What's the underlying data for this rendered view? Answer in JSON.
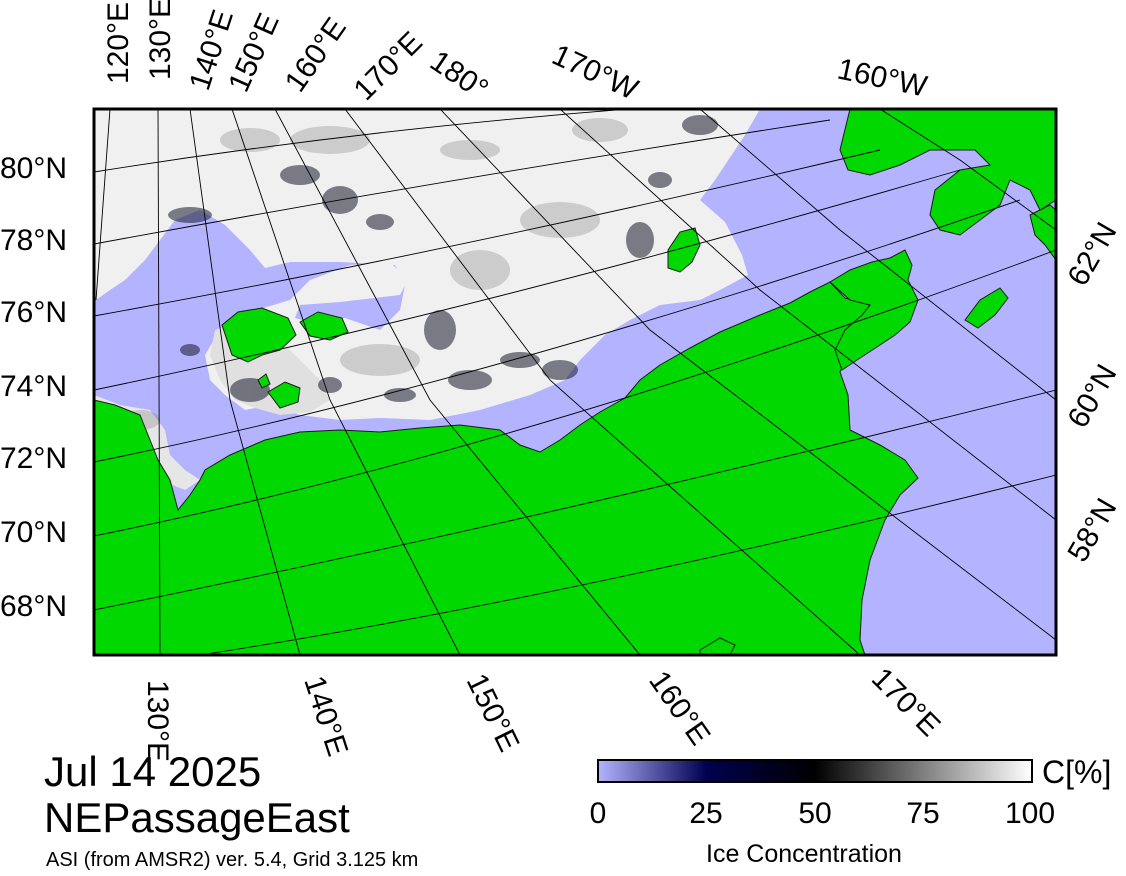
{
  "date": "Jul 14 2025",
  "region": "NEPassageEast",
  "source": "ASI (from AMSR2) ver. 5.4,  Grid 3.125 km",
  "colorbar": {
    "title": "Ice Concentration",
    "unit": "C[%]",
    "ticks": [
      "0",
      "25",
      "50",
      "75",
      "100"
    ],
    "colors": [
      "#b3b3ff",
      "#000050",
      "#000000",
      "#ffffff"
    ]
  },
  "colors": {
    "land": "#00d800",
    "ocean": "#b3b3ff",
    "ice": "#f0f0f0",
    "grid": "#000000"
  },
  "labels": {
    "top": [
      "120°E",
      "130°E",
      "140°E",
      "150°E",
      "160°E",
      "170°E",
      "180°",
      "170°W",
      "160°W"
    ],
    "left": [
      "80°N",
      "78°N",
      "76°N",
      "74°N",
      "72°N",
      "70°N",
      "68°N"
    ],
    "right": [
      "62°N",
      "60°N",
      "58°N"
    ],
    "bottom": [
      "130°E",
      "140°E",
      "150°E",
      "160°E",
      "170°E"
    ]
  }
}
